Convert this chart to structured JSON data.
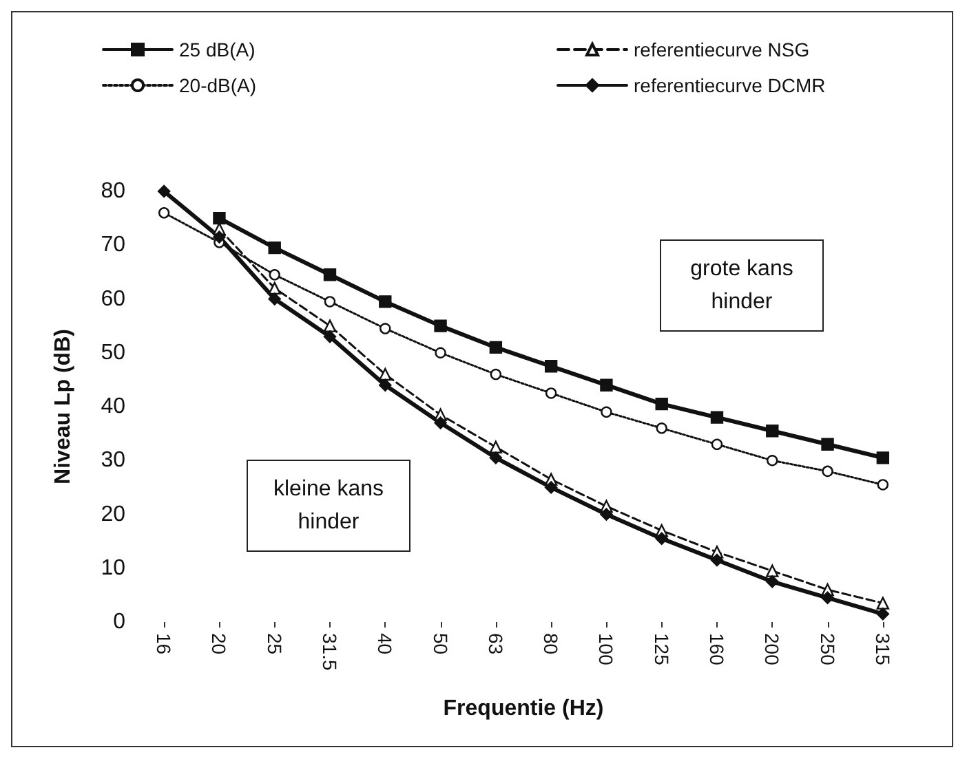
{
  "chart_data": {
    "type": "line",
    "xlabel": "Frequentie (Hz)",
    "ylabel": "Niveau Lp (dB)",
    "categories": [
      "16",
      "20",
      "25",
      "31.5",
      "40",
      "50",
      "63",
      "80",
      "100",
      "125",
      "160",
      "200",
      "250",
      "315"
    ],
    "series": [
      {
        "name": "25 dB(A)",
        "color": "#111111",
        "marker": "square",
        "line_style": "solid",
        "values": [
          null,
          75,
          69.5,
          64.5,
          59.5,
          55,
          51,
          47.5,
          44,
          40.5,
          38,
          35.5,
          33,
          30.5
        ]
      },
      {
        "name": "20-dB(A)",
        "color": "#111111",
        "marker": "circle",
        "line_style": "dotted",
        "values": [
          76,
          70.5,
          64.5,
          59.5,
          54.5,
          50,
          46,
          42.5,
          39,
          36,
          33,
          30,
          28,
          25.5
        ]
      },
      {
        "name": "referentiecurve NSG",
        "color": "#111111",
        "marker": "triangle",
        "line_style": "dashed",
        "values": [
          null,
          73,
          62,
          55,
          46,
          38.5,
          32.5,
          26.5,
          21.5,
          17,
          13,
          9.5,
          6,
          3.5
        ]
      },
      {
        "name": "referentiecurve DCMR",
        "color": "#111111",
        "marker": "diamond",
        "line_style": "solid",
        "values": [
          80,
          71.5,
          60,
          53,
          44,
          37,
          30.5,
          25,
          20,
          15.5,
          11.5,
          7.5,
          4.5,
          1.5
        ]
      }
    ],
    "ylim": [
      0,
      80
    ],
    "yticks": [
      0,
      10,
      20,
      30,
      40,
      50,
      60,
      70,
      80
    ],
    "annotations": [
      "grote kans hinder",
      "kleine kans hinder"
    ],
    "grid": false,
    "legend": "top"
  }
}
